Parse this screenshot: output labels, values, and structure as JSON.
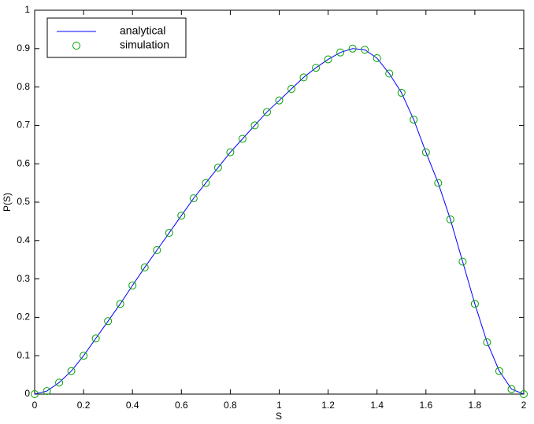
{
  "chart_data": {
    "type": "line",
    "xlabel": "S",
    "ylabel": "P(S)",
    "x": [
      0,
      0.05,
      0.1,
      0.15,
      0.2,
      0.25,
      0.3,
      0.35,
      0.4,
      0.45,
      0.5,
      0.55,
      0.6,
      0.65,
      0.7,
      0.75,
      0.8,
      0.85,
      0.9,
      0.95,
      1,
      1.05,
      1.1,
      1.15,
      1.2,
      1.25,
      1.3,
      1.35,
      1.4,
      1.45,
      1.5,
      1.55,
      1.6,
      1.65,
      1.7,
      1.75,
      1.8,
      1.85,
      1.9,
      1.95,
      2
    ],
    "series": [
      {
        "name": "analytical",
        "color": "#0000ff",
        "mode": "line",
        "values": [
          0,
          0.008,
          0.03,
          0.06,
          0.1,
          0.145,
          0.19,
          0.235,
          0.283,
          0.33,
          0.375,
          0.42,
          0.465,
          0.51,
          0.55,
          0.59,
          0.63,
          0.665,
          0.7,
          0.735,
          0.765,
          0.795,
          0.825,
          0.85,
          0.872,
          0.89,
          0.9,
          0.897,
          0.875,
          0.835,
          0.785,
          0.715,
          0.63,
          0.55,
          0.455,
          0.345,
          0.235,
          0.135,
          0.06,
          0.013,
          0
        ]
      },
      {
        "name": "simulation",
        "color": "#00a000",
        "mode": "markers",
        "values": [
          0,
          0.008,
          0.03,
          0.06,
          0.1,
          0.145,
          0.19,
          0.235,
          0.283,
          0.33,
          0.375,
          0.42,
          0.465,
          0.51,
          0.55,
          0.59,
          0.63,
          0.665,
          0.7,
          0.735,
          0.765,
          0.795,
          0.825,
          0.85,
          0.872,
          0.89,
          0.9,
          0.897,
          0.875,
          0.835,
          0.785,
          0.715,
          0.63,
          0.55,
          0.455,
          0.345,
          0.235,
          0.135,
          0.06,
          0.013,
          0
        ]
      }
    ],
    "xlim": [
      0,
      2
    ],
    "xticks": [
      0,
      0.2,
      0.4,
      0.6,
      0.8,
      1,
      1.2,
      1.4,
      1.6,
      1.8,
      2
    ],
    "ylim": [
      0,
      1
    ],
    "yticks": [
      0,
      0.1,
      0.2,
      0.3,
      0.4,
      0.5,
      0.6,
      0.7,
      0.8,
      0.9,
      1
    ],
    "grid": false,
    "legend": "upper left"
  }
}
